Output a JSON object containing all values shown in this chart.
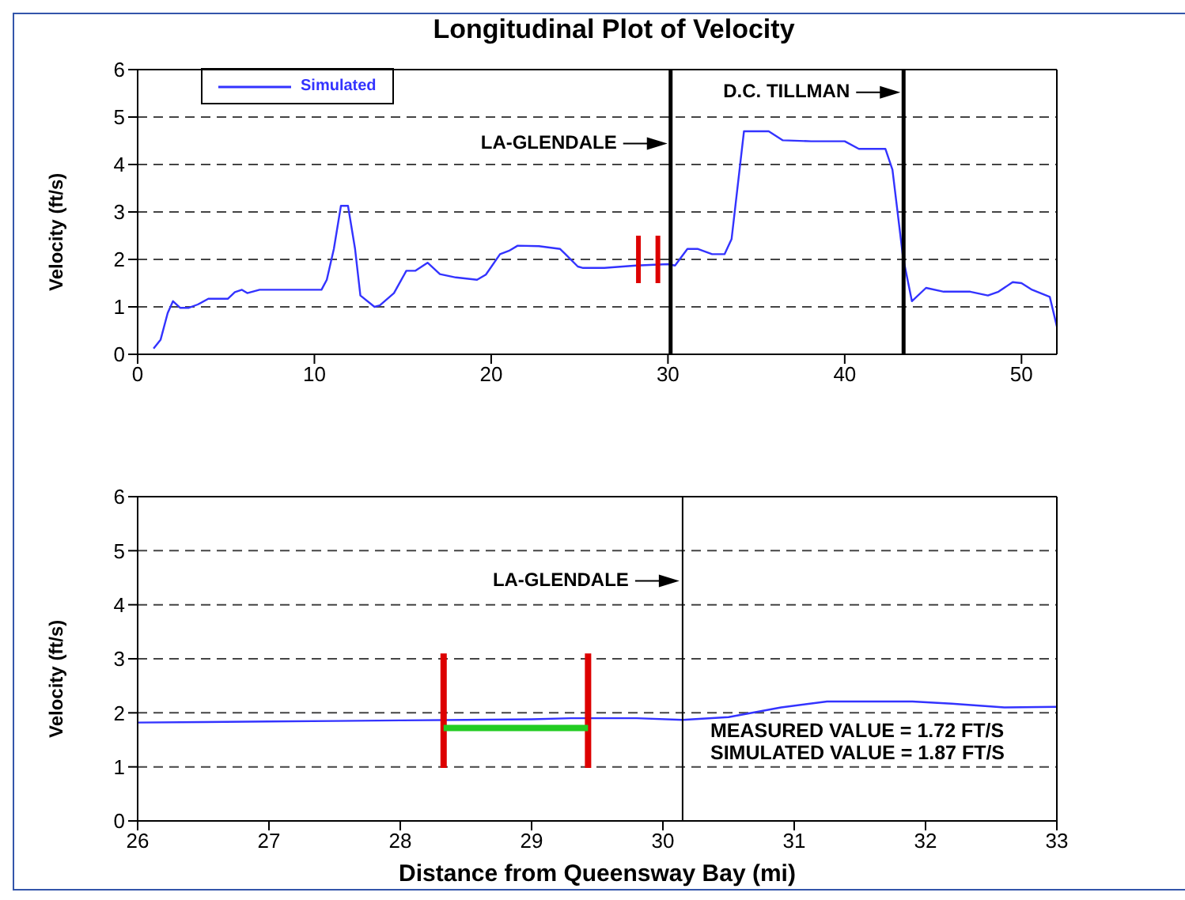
{
  "chart_data": [
    {
      "type": "line",
      "title": "Longitudinal Plot of Velocity",
      "ylabel": "Velocity (ft/s)",
      "xlim": [
        0,
        52
      ],
      "xticks": [
        0,
        10,
        20,
        30,
        40,
        50
      ],
      "ylim": [
        0,
        6
      ],
      "yticks": [
        0,
        1,
        2,
        3,
        4,
        5,
        6
      ],
      "grid": "y",
      "legend": "top left",
      "series": [
        {
          "name": "Simulated",
          "color": "#3333ff",
          "x": [
            0.9,
            1.3,
            1.7,
            2.0,
            2.4,
            2.9,
            3.4,
            4.0,
            5.1,
            5.5,
            5.9,
            6.2,
            6.9,
            10.4,
            10.7,
            11.1,
            11.5,
            11.9,
            12.3,
            12.6,
            13.4,
            13.7,
            14.5,
            15.2,
            15.7,
            16.4,
            17.1,
            18.0,
            19.2,
            19.7,
            20.5,
            21.0,
            21.5,
            22.7,
            23.9,
            24.2,
            24.9,
            25.2,
            26.4,
            28.2,
            30.0,
            30.4,
            31.1,
            31.7,
            32.5,
            33.2,
            33.6,
            34.3,
            35.7,
            36.5,
            38.1,
            40.0,
            40.8,
            42.3,
            42.7,
            43.3,
            43.8,
            44.6,
            45.6,
            47.1,
            48.1,
            48.7,
            49.5,
            50.0,
            50.6,
            51.6,
            52.0
          ],
          "values": [
            0.12,
            0.31,
            0.87,
            1.12,
            0.98,
            0.98,
            1.05,
            1.17,
            1.17,
            1.31,
            1.36,
            1.29,
            1.36,
            1.36,
            1.57,
            2.22,
            3.13,
            3.13,
            2.22,
            1.24,
            1.0,
            1.03,
            1.29,
            1.76,
            1.76,
            1.93,
            1.69,
            1.62,
            1.57,
            1.68,
            2.11,
            2.18,
            2.29,
            2.28,
            2.22,
            2.11,
            1.85,
            1.82,
            1.82,
            1.87,
            1.9,
            1.87,
            2.22,
            2.22,
            2.11,
            2.11,
            2.43,
            4.7,
            4.7,
            4.51,
            4.49,
            4.49,
            4.33,
            4.33,
            3.89,
            2.04,
            1.12,
            1.4,
            1.32,
            1.32,
            1.24,
            1.32,
            1.52,
            1.5,
            1.36,
            1.21,
            0.59
          ]
        },
        {
          "color": "#dd0000",
          "x": [
            28.33,
            28.33
          ],
          "values": [
            1.5,
            2.5
          ]
        },
        {
          "color": "#dd0000",
          "x": [
            29.43,
            29.43
          ],
          "values": [
            1.5,
            2.5
          ]
        }
      ],
      "ref_lines": [
        {
          "axis": "x",
          "value": 30.15,
          "label": "LA-GLENDALE"
        },
        {
          "axis": "x",
          "value": 43.33,
          "label": "D.C. TILLMAN"
        }
      ]
    },
    {
      "type": "line",
      "xlabel": "Distance from Queensway Bay (mi)",
      "ylabel": "Velocity (ft/s)",
      "xlim": [
        26,
        33
      ],
      "xticks": [
        26,
        27,
        28,
        29,
        30,
        31,
        32,
        33
      ],
      "ylim": [
        0,
        6
      ],
      "yticks": [
        0,
        1,
        2,
        3,
        4,
        5,
        6
      ],
      "grid": "y",
      "series": [
        {
          "color": "#3333ff",
          "x": [
            26,
            26.5,
            27,
            27.5,
            28,
            28.5,
            29,
            29.3,
            29.8,
            30.15,
            30.5,
            30.9,
            31.25,
            31.9,
            32.2,
            32.6,
            33
          ],
          "values": [
            1.82,
            1.83,
            1.84,
            1.85,
            1.86,
            1.87,
            1.88,
            1.9,
            1.9,
            1.87,
            1.92,
            2.1,
            2.21,
            2.21,
            2.17,
            2.1,
            2.11
          ]
        },
        {
          "color": "#dd0000",
          "x": [
            28.33,
            28.33
          ],
          "values": [
            0.98,
            3.1
          ]
        },
        {
          "color": "#dd0000",
          "x": [
            29.43,
            29.43
          ],
          "values": [
            0.98,
            3.1
          ]
        },
        {
          "color": "#22cc22",
          "x": [
            28.33,
            29.43
          ],
          "values": [
            1.72,
            1.72
          ]
        }
      ],
      "ref_lines": [
        {
          "axis": "x",
          "value": 30.15,
          "label": "LA-GLENDALE"
        }
      ],
      "annotations": [
        "MEASURED VALUE = 1.72 FT/S",
        "SIMULATED VALUE = 1.87 FT/S"
      ]
    }
  ]
}
